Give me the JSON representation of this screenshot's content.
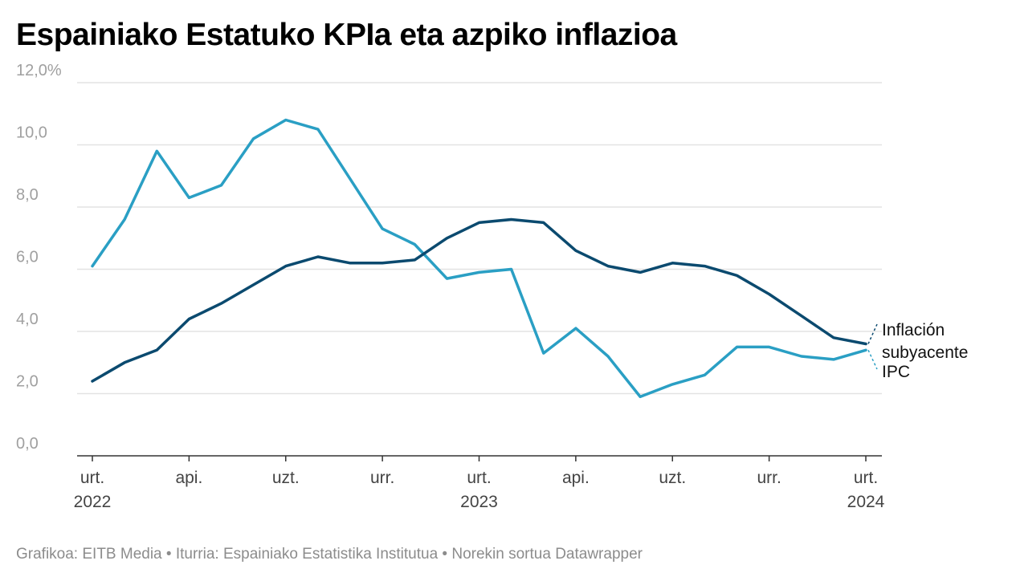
{
  "chart_data": {
    "type": "line",
    "title": "Espainiako Estatuko KPIa eta azpiko inflazioa",
    "ylim": [
      0,
      12
    ],
    "yticks": [
      {
        "value": 0,
        "label": "0,0"
      },
      {
        "value": 2,
        "label": "2,0"
      },
      {
        "value": 4,
        "label": "4,0"
      },
      {
        "value": 6,
        "label": "6,0"
      },
      {
        "value": 8,
        "label": "8,0"
      },
      {
        "value": 10,
        "label": "10,0"
      },
      {
        "value": 12,
        "label": "12,0%"
      }
    ],
    "xticks": [
      {
        "index": 0,
        "line1": "urt.",
        "line2": "2022"
      },
      {
        "index": 3,
        "line1": "api.",
        "line2": ""
      },
      {
        "index": 6,
        "line1": "uzt.",
        "line2": ""
      },
      {
        "index": 9,
        "line1": "urr.",
        "line2": ""
      },
      {
        "index": 12,
        "line1": "urt.",
        "line2": "2023"
      },
      {
        "index": 15,
        "line1": "api.",
        "line2": ""
      },
      {
        "index": 18,
        "line1": "uzt.",
        "line2": ""
      },
      {
        "index": 21,
        "line1": "urr.",
        "line2": ""
      },
      {
        "index": 24,
        "line1": "urt.",
        "line2": "2024"
      }
    ],
    "series": [
      {
        "name": "Inflación subyacente",
        "label_line1": "Inflación",
        "label_line2": "subyacente",
        "color": "#0b4a6f",
        "values": [
          2.4,
          3.0,
          3.4,
          4.4,
          4.9,
          5.5,
          6.1,
          6.4,
          6.2,
          6.2,
          6.3,
          7.0,
          7.5,
          7.6,
          7.5,
          6.6,
          6.1,
          5.9,
          6.2,
          6.1,
          5.8,
          5.2,
          4.5,
          3.8,
          3.6
        ]
      },
      {
        "name": "IPC",
        "label_line1": "IPC",
        "label_line2": "",
        "color": "#2a9fc4",
        "values": [
          6.1,
          7.6,
          9.8,
          8.3,
          8.7,
          10.2,
          10.8,
          10.5,
          8.9,
          7.3,
          6.8,
          5.7,
          5.9,
          6.0,
          3.3,
          4.1,
          3.2,
          1.9,
          2.3,
          2.6,
          3.5,
          3.5,
          3.2,
          3.1,
          3.4
        ]
      }
    ],
    "gridline_color": "#e3e3e3",
    "axis_color": "#333333"
  },
  "footer": "Grafikoa: EITB Media • Iturria: Espainiako Estatistika Institutua • Norekin sortua Datawrapper"
}
